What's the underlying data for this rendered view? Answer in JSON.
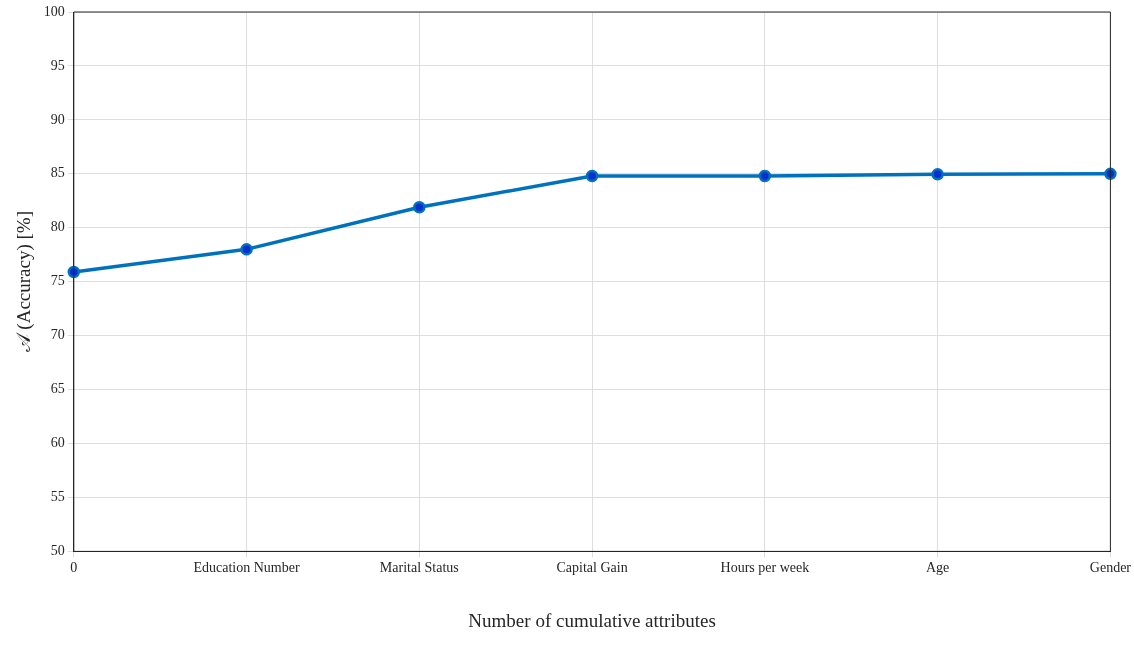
{
  "chart_data": {
    "type": "line",
    "xlabel": "Number of cumulative attributes",
    "ylabel": "𝒜 (Accuracy) [%]",
    "categories": [
      "0",
      "Education Number",
      "Marital Status",
      "Capital Gain",
      "Hours per week",
      "Age",
      "Gender"
    ],
    "series": [
      {
        "color": "#0072bd",
        "values": [
          75.9,
          78.0,
          81.9,
          84.8,
          84.8,
          84.95,
          85.0
        ]
      }
    ],
    "ylim": [
      50,
      100
    ],
    "yticks": [
      50,
      55,
      60,
      65,
      70,
      75,
      80,
      85,
      90,
      95,
      100
    ],
    "grid": true,
    "marker": "circle"
  }
}
